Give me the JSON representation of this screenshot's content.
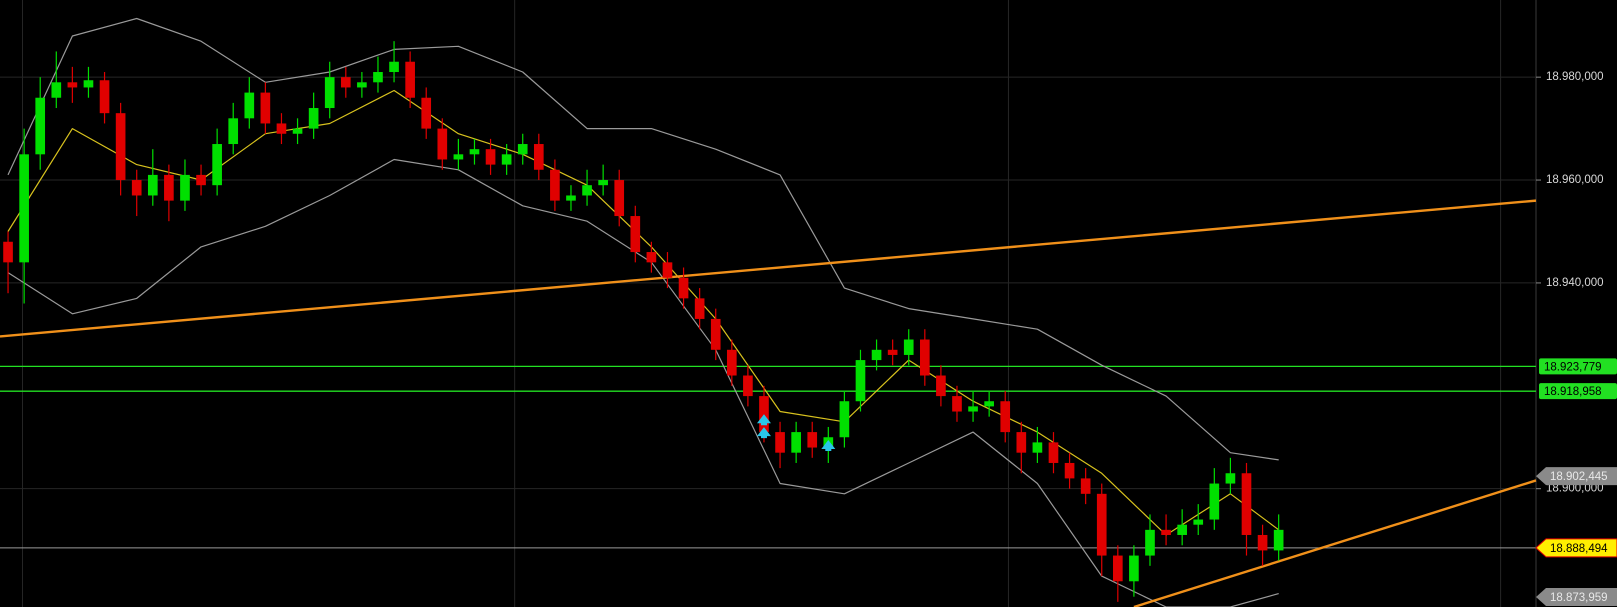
{
  "chart_data": {
    "type": "candlestick",
    "up_color": "#00e000",
    "down_color": "#e00000",
    "xlim": [
      -0.5,
      95
    ],
    "ylim": [
      18877,
      18995
    ],
    "yticks": [
      {
        "value": 18900,
        "label": "18.900,000"
      },
      {
        "value": 18940,
        "label": "18.940,000"
      },
      {
        "value": 18960,
        "label": "18.960,000"
      },
      {
        "value": 18980,
        "label": "18.980,000"
      }
    ],
    "xgrid": [
      0.9,
      31.5,
      62.2,
      92.8
    ],
    "grid": true,
    "candles": [
      [
        18948,
        18950,
        18938,
        18944
      ],
      [
        18944,
        18970,
        18936,
        18965
      ],
      [
        18965,
        18980,
        18962,
        18976
      ],
      [
        18976,
        18985,
        18974,
        18979
      ],
      [
        18979,
        18982,
        18975,
        18978
      ],
      [
        18978,
        18982,
        18976,
        18979.4
      ],
      [
        18979.4,
        18981,
        18971,
        18973
      ],
      [
        18973,
        18975,
        18957,
        18960
      ],
      [
        18960,
        18962,
        18953,
        18957
      ],
      [
        18957,
        18966,
        18955,
        18961
      ],
      [
        18961,
        18963,
        18952,
        18956
      ],
      [
        18956,
        18964,
        18954,
        18961
      ],
      [
        18961,
        18963,
        18957,
        18959
      ],
      [
        18959,
        18970,
        18957,
        18967
      ],
      [
        18967,
        18975,
        18965,
        18972
      ],
      [
        18972,
        18980,
        18970,
        18977
      ],
      [
        18977,
        18979,
        18969,
        18971
      ],
      [
        18971,
        18973,
        18967,
        18969
      ],
      [
        18969,
        18972,
        18967,
        18970
      ],
      [
        18970,
        18977,
        18968,
        18974
      ],
      [
        18974,
        18983,
        18972,
        18980
      ],
      [
        18980,
        18982,
        18976,
        18978
      ],
      [
        18978,
        18981,
        18976,
        18979
      ],
      [
        18979,
        18984,
        18977,
        18981
      ],
      [
        18981,
        18987,
        18979,
        18983
      ],
      [
        18983,
        18985,
        18974,
        18976
      ],
      [
        18976,
        18978,
        18968,
        18970
      ],
      [
        18970,
        18972,
        18962,
        18964
      ],
      [
        18964,
        18968,
        18962,
        18965
      ],
      [
        18965,
        18968,
        18963,
        18966
      ],
      [
        18966,
        18968,
        18961,
        18963
      ],
      [
        18963,
        18967,
        18961,
        18965
      ],
      [
        18965,
        18969,
        18963,
        18967
      ],
      [
        18967,
        18969,
        18960,
        18962
      ],
      [
        18962,
        18964,
        18954,
        18956
      ],
      [
        18956,
        18959,
        18954,
        18957
      ],
      [
        18957,
        18962,
        18955,
        18959
      ],
      [
        18959,
        18963,
        18957,
        18960
      ],
      [
        18960,
        18962,
        18951,
        18953
      ],
      [
        18953,
        18955,
        18944,
        18946
      ],
      [
        18946,
        18948,
        18942,
        18944
      ],
      [
        18944,
        18946,
        18939,
        18941
      ],
      [
        18941,
        18943,
        18935,
        18937
      ],
      [
        18937,
        18939,
        18931,
        18933
      ],
      [
        18933,
        18935,
        18925,
        18927
      ],
      [
        18927,
        18929,
        18920,
        18922
      ],
      [
        18922,
        18924,
        18916,
        18918
      ],
      [
        18918,
        18920,
        18909,
        18911
      ],
      [
        18911,
        18913,
        18904,
        18907
      ],
      [
        18907,
        18913,
        18905,
        18911
      ],
      [
        18911,
        18913,
        18906,
        18908
      ],
      [
        18908,
        18912,
        18905,
        18910
      ],
      [
        18910,
        18919,
        18908,
        18917
      ],
      [
        18917,
        18927,
        18915,
        18925
      ],
      [
        18925,
        18929,
        18923,
        18927
      ],
      [
        18927,
        18929,
        18924,
        18926
      ],
      [
        18926,
        18931,
        18924,
        18929
      ],
      [
        18929,
        18931,
        18920,
        18922
      ],
      [
        18922,
        18924,
        18916,
        18918
      ],
      [
        18918,
        18920,
        18913,
        18915
      ],
      [
        18915,
        18919,
        18913,
        18916
      ],
      [
        18916,
        18919,
        18914,
        18917
      ],
      [
        18917,
        18919,
        18909,
        18911
      ],
      [
        18911,
        18913,
        18903,
        18907
      ],
      [
        18907,
        18912,
        18905,
        18909
      ],
      [
        18909,
        18911,
        18903,
        18905
      ],
      [
        18905,
        18907,
        18900,
        18902
      ],
      [
        18902,
        18904,
        18897,
        18899
      ],
      [
        18899,
        18901,
        18883,
        18887
      ],
      [
        18887,
        18889,
        18878,
        18882
      ],
      [
        18882,
        18889,
        18879,
        18887
      ],
      [
        18887,
        18895,
        18885,
        18892
      ],
      [
        18892,
        18895,
        18889,
        18891
      ],
      [
        18891,
        18896,
        18889,
        18893
      ],
      [
        18893,
        18897,
        18891,
        18894
      ],
      [
        18894,
        18904,
        18892,
        18901
      ],
      [
        18901,
        18906,
        18899,
        18903
      ],
      [
        18903,
        18905,
        18887,
        18891
      ],
      [
        18891,
        18893,
        18885,
        18888
      ],
      [
        18888,
        18895,
        18886,
        18892
      ]
    ],
    "bands": {
      "x": [
        0,
        4,
        8,
        12,
        16,
        20,
        24,
        28,
        32,
        36,
        40,
        44,
        48,
        52,
        56,
        60,
        64,
        68,
        72,
        76,
        79
      ],
      "series": [
        {
          "color": "#9a9a9a",
          "values": [
            18961,
            18988,
            18991.4,
            18987,
            18979,
            18981,
            18985.4,
            18986,
            18981,
            18970,
            18970,
            18966,
            18961,
            18939,
            18935,
            18933,
            18931,
            18924,
            18918,
            18907,
            18905.6
          ]
        },
        {
          "color": "#d8c21e",
          "values": [
            18950,
            18970,
            18963,
            18960,
            18969,
            18971,
            18977.4,
            18969,
            18965,
            18959,
            18947,
            18933,
            18915,
            18913,
            18925,
            18917,
            18911,
            18903,
            18891,
            18899,
            18892
          ]
        },
        {
          "color": "#9a9a9a",
          "values": [
            18942,
            18934,
            18937,
            18947,
            18951,
            18957,
            18964,
            18962,
            18955,
            18952,
            18944,
            18927,
            18901,
            18899,
            18905,
            18911,
            18901,
            18883,
            18877,
            18877,
            18879.6
          ]
        }
      ]
    },
    "trendlines": [
      {
        "color": "#f0901a",
        "from": [
          -0.5,
          18929.6
        ],
        "to": [
          95,
          18956
        ]
      },
      {
        "color": "#f0901a",
        "from": [
          70,
          18877
        ],
        "to": [
          95,
          18901.6
        ]
      }
    ],
    "signals": [
      {
        "color": "#29c6e8",
        "x": 47,
        "y": 18913.5
      },
      {
        "color": "#29c6e8",
        "x": 47,
        "y": 18911
      },
      {
        "color": "#29c6e8",
        "x": 51,
        "y": 18908.5
      }
    ],
    "levels": [
      {
        "value": 18923.779,
        "label": "18.923,779",
        "kind": "line",
        "color": "#22e022"
      },
      {
        "value": 18918.958,
        "label": "18.918,958",
        "kind": "line",
        "color": "#22e022"
      },
      {
        "value": 18902.445,
        "label": "18.902,445",
        "kind": "tag",
        "color": "#8a8a8a"
      },
      {
        "value": 18888.494,
        "label": "18.888,494",
        "kind": "current",
        "color": "#ffee00"
      },
      {
        "value": 18873.959,
        "label": "18.873,959",
        "kind": "tag",
        "color": "#8a8a8a"
      }
    ]
  }
}
